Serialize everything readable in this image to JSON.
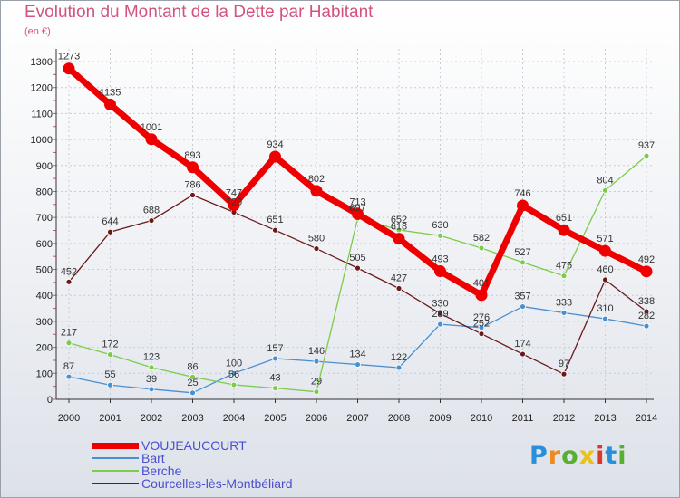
{
  "title": "Evolution du Montant de la Dette par Habitant",
  "unit": "(en €)",
  "logo": "Proxiti",
  "chart_data": {
    "type": "line",
    "x": [
      "2000",
      "2001",
      "2002",
      "2003",
      "2004",
      "2005",
      "2006",
      "2007",
      "2008",
      "2009",
      "2010",
      "2011",
      "2012",
      "2013",
      "2014"
    ],
    "ylim": [
      0,
      1300
    ],
    "yticks": [
      0,
      100,
      200,
      300,
      400,
      500,
      600,
      700,
      800,
      900,
      1000,
      1100,
      1200,
      1300
    ],
    "grid": true,
    "legend_position": "bottom-left",
    "series": [
      {
        "name": "VOUJEAUCOURT",
        "color": "#ee0000",
        "values": [
          1273,
          1135,
          1001,
          893,
          747,
          934,
          802,
          713,
          618,
          493,
          401,
          746,
          651,
          571,
          492
        ]
      },
      {
        "name": "Bart",
        "color": "#4a90d0",
        "values": [
          87,
          55,
          39,
          25,
          100,
          157,
          146,
          134,
          122,
          289,
          276,
          357,
          333,
          310,
          282
        ]
      },
      {
        "name": "Berche",
        "color": "#7ccc4a",
        "values": [
          217,
          172,
          123,
          86,
          56,
          43,
          29,
          697,
          652,
          630,
          582,
          527,
          475,
          804,
          937
        ]
      },
      {
        "name": "Courcelles-lès-Montbéliard",
        "color": "#6b1a1a",
        "values": [
          452,
          644,
          688,
          786,
          720,
          651,
          580,
          505,
          427,
          330,
          252,
          174,
          97,
          460,
          338
        ]
      }
    ]
  }
}
